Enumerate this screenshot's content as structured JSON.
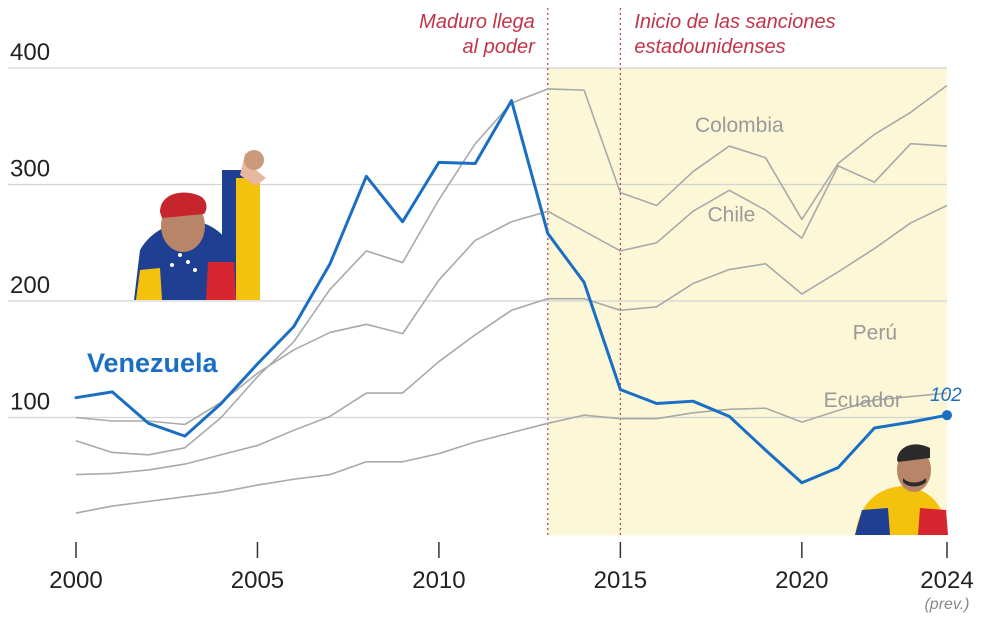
{
  "chart_data": {
    "type": "line",
    "xlim": [
      2000,
      2024
    ],
    "ylim": [
      0,
      400
    ],
    "y_ticks": [
      "100",
      "200",
      "300",
      "400"
    ],
    "y_tick_values": [
      100,
      200,
      300,
      400
    ],
    "x_ticks": [
      "2000",
      "2005",
      "2010",
      "2015",
      "2020",
      "2024"
    ],
    "x_tick_values": [
      2000,
      2005,
      2010,
      2015,
      2020,
      2024
    ],
    "x_tick_sub": "(prev.)",
    "grid": "horizontal",
    "shaded_range": [
      2013,
      2024
    ],
    "events": [
      {
        "x": 2013,
        "lines": [
          "Maduro llega",
          "al poder"
        ]
      },
      {
        "x": 2015,
        "lines": [
          "Inicio de las sanciones",
          "estadounidenses"
        ]
      }
    ],
    "highlight": {
      "name": "Venezuela",
      "end_label": "102",
      "color": "#1a6fc4",
      "x": [
        2000,
        2001,
        2002,
        2003,
        2004,
        2005,
        2006,
        2007,
        2008,
        2009,
        2010,
        2011,
        2012,
        2013,
        2014,
        2015,
        2016,
        2017,
        2018,
        2019,
        2020,
        2021,
        2022,
        2023,
        2024
      ],
      "values": [
        117,
        122,
        95,
        84,
        112,
        146,
        178,
        232,
        307,
        268,
        319,
        318,
        372,
        258,
        216,
        124,
        112,
        114,
        101,
        72,
        44,
        57,
        91,
        96,
        102
      ]
    },
    "series": [
      {
        "name": "Colombia",
        "x": [
          2000,
          2001,
          2002,
          2003,
          2004,
          2005,
          2006,
          2007,
          2008,
          2009,
          2010,
          2011,
          2012,
          2013,
          2014,
          2015,
          2016,
          2017,
          2018,
          2019,
          2020,
          2021,
          2022,
          2023,
          2024
        ],
        "values": [
          80,
          70,
          68,
          74,
          100,
          135,
          165,
          210,
          243,
          233,
          287,
          335,
          370,
          382,
          381,
          293,
          282,
          311,
          333,
          323,
          270,
          318,
          343,
          362,
          385
        ]
      },
      {
        "name": "Chile",
        "x": [
          2000,
          2001,
          2002,
          2003,
          2004,
          2005,
          2006,
          2007,
          2008,
          2009,
          2010,
          2011,
          2012,
          2013,
          2014,
          2015,
          2016,
          2017,
          2018,
          2019,
          2020,
          2021,
          2022,
          2023,
          2024
        ],
        "values": [
          100,
          97,
          97,
          94,
          113,
          138,
          158,
          173,
          180,
          172,
          218,
          252,
          268,
          277,
          260,
          243,
          250,
          277,
          295,
          278,
          254,
          316,
          302,
          335,
          333
        ]
      },
      {
        "name": "Perú",
        "x": [
          2000,
          2001,
          2002,
          2003,
          2004,
          2005,
          2006,
          2007,
          2008,
          2009,
          2010,
          2011,
          2012,
          2013,
          2014,
          2015,
          2016,
          2017,
          2018,
          2019,
          2020,
          2021,
          2022,
          2023,
          2024
        ],
        "values": [
          51,
          52,
          55,
          60,
          68,
          76,
          89,
          101,
          121,
          121,
          148,
          171,
          192,
          202,
          202,
          192,
          195,
          215,
          227,
          232,
          206,
          225,
          245,
          267,
          282
        ]
      },
      {
        "name": "Ecuador",
        "x": [
          2000,
          2001,
          2002,
          2003,
          2004,
          2005,
          2006,
          2007,
          2008,
          2009,
          2010,
          2011,
          2012,
          2013,
          2014,
          2015,
          2016,
          2017,
          2018,
          2019,
          2020,
          2021,
          2022,
          2023,
          2024
        ],
        "values": [
          18,
          24,
          28,
          32,
          36,
          42,
          47,
          51,
          62,
          62,
          69,
          79,
          87,
          95,
          102,
          99,
          99,
          104,
          107,
          108,
          96,
          106,
          115,
          118,
          121
        ]
      }
    ]
  }
}
